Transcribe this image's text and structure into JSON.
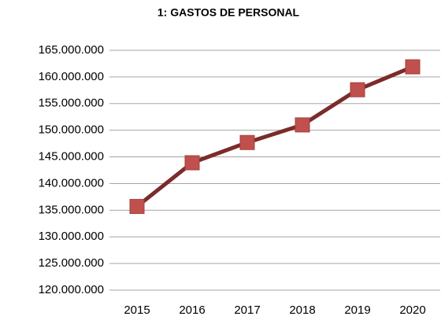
{
  "chart_data": {
    "type": "line",
    "title": "1: GASTOS DE PERSONAL",
    "categories": [
      "2015",
      "2016",
      "2017",
      "2018",
      "2019",
      "2020"
    ],
    "series": [
      {
        "name": "Gastos de personal",
        "color": "#7b2c2a",
        "marker_color": "#c0504d",
        "values": [
          135700000,
          143900000,
          147700000,
          151000000,
          157600000,
          161900000
        ]
      }
    ],
    "ylim": [
      120000000,
      165000000
    ],
    "yticks": [
      {
        "value": 120000000,
        "label": "120.000.000"
      },
      {
        "value": 125000000,
        "label": "125.000.000"
      },
      {
        "value": 130000000,
        "label": "130.000.000"
      },
      {
        "value": 135000000,
        "label": "135.000.000"
      },
      {
        "value": 140000000,
        "label": "140.000.000"
      },
      {
        "value": 145000000,
        "label": "145.000.000"
      },
      {
        "value": 150000000,
        "label": "150.000.000"
      },
      {
        "value": 155000000,
        "label": "155.000.000"
      },
      {
        "value": 160000000,
        "label": "160.000.000"
      },
      {
        "value": 165000000,
        "label": "165.000.000"
      }
    ],
    "grid": true,
    "legend": false
  }
}
